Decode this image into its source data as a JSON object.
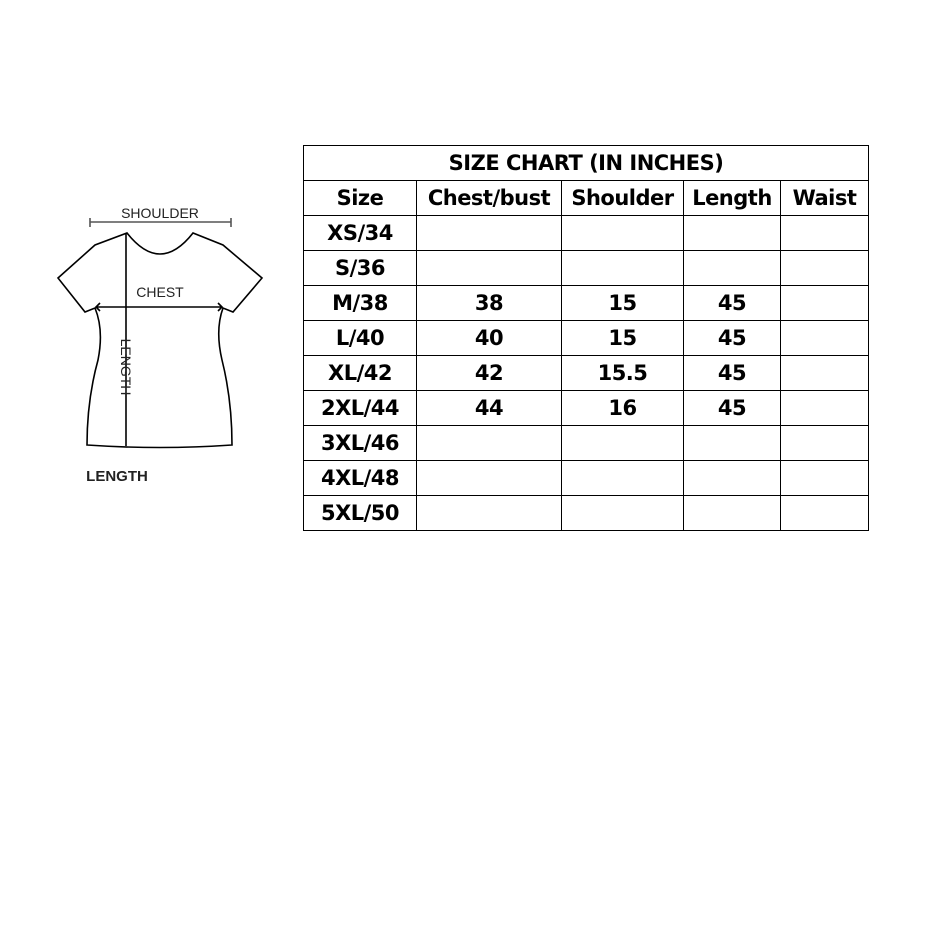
{
  "diagram": {
    "shoulder_label": "SHOULDER",
    "chest_label": "CHEST",
    "length_vertical_label": "LENGTH",
    "length_caption": "LENGTH"
  },
  "table": {
    "title": "SIZE CHART (IN INCHES)",
    "headers": [
      "Size",
      "Chest/bust",
      "Shoulder",
      "Length",
      "Waist"
    ],
    "rows": [
      [
        "XS/34",
        "",
        "",
        "",
        ""
      ],
      [
        "S/36",
        "",
        "",
        "",
        ""
      ],
      [
        "M/38",
        "38",
        "15",
        "45",
        ""
      ],
      [
        "L/40",
        "40",
        "15",
        "45",
        ""
      ],
      [
        "XL/42",
        "42",
        "15.5",
        "45",
        ""
      ],
      [
        "2XL/44",
        "44",
        "16",
        "45",
        ""
      ],
      [
        "3XL/46",
        "",
        "",
        "",
        ""
      ],
      [
        "4XL/48",
        "",
        "",
        "",
        ""
      ],
      [
        "5XL/50",
        "",
        "",
        "",
        ""
      ]
    ]
  }
}
